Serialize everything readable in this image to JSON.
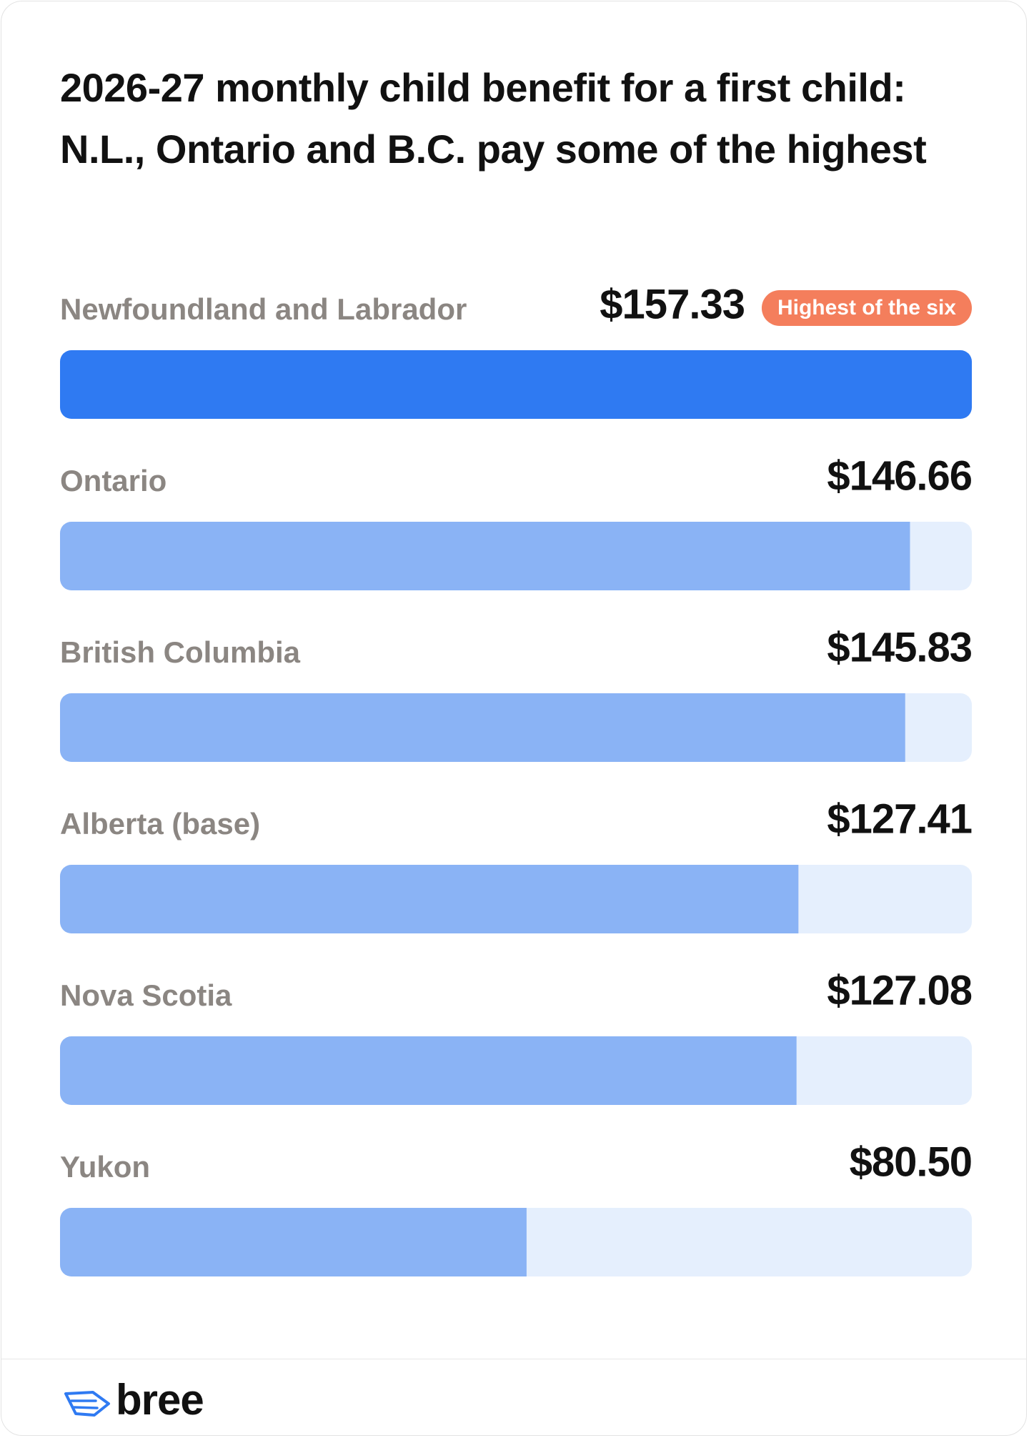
{
  "chart_data": {
    "type": "bar",
    "orientation": "horizontal",
    "title": "2026-27 monthly child benefit for a first child: N.L., Ontario and B.C. pay some of the highest",
    "categories": [
      "Newfoundland and Labrador",
      "Ontario",
      "British Columbia",
      "Alberta (base)",
      "Nova Scotia",
      "Yukon"
    ],
    "values": [
      157.33,
      146.66,
      145.83,
      127.41,
      127.08,
      80.5
    ],
    "value_labels": [
      "$157.33",
      "$146.66",
      "$145.83",
      "$127.41",
      "$127.08",
      "$80.50"
    ],
    "colors": [
      "#2f7af2",
      "#8ab3f5",
      "#8ab3f5",
      "#8ab3f5",
      "#8ab3f5",
      "#8ab3f5"
    ],
    "track_color": "#e5effd",
    "xlim": [
      0,
      157.33
    ],
    "annotation": {
      "text": "Highest of the six",
      "category": "Newfoundland and Labrador",
      "color": "#f47e5c"
    }
  },
  "footer": {
    "logo": "bree"
  }
}
